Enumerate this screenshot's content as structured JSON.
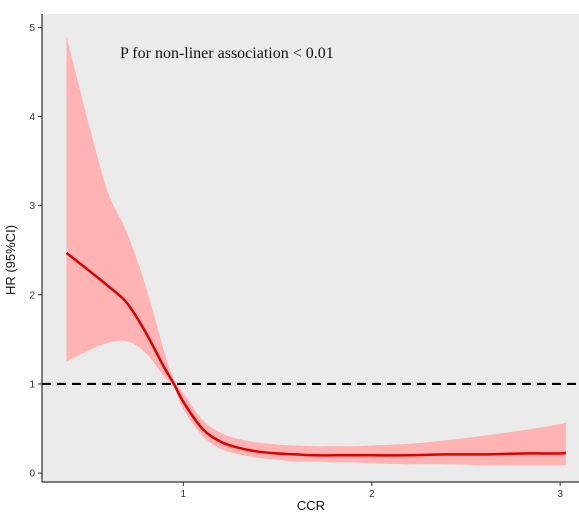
{
  "chart_data": {
    "type": "line",
    "title": "",
    "annotation": "P for non-liner association < 0.01",
    "xlabel": "CCR",
    "ylabel": "HR (95%CI)",
    "xlim": [
      0.25,
      3.1
    ],
    "ylim": [
      -0.1,
      5.15
    ],
    "x_ticks": [
      1,
      2,
      3
    ],
    "y_ticks": [
      0,
      1,
      2,
      3,
      4,
      5
    ],
    "grid": false,
    "reference_line": {
      "y": 1,
      "style": "dashed",
      "color": "#000000"
    },
    "colors": {
      "line": "#dd0000",
      "band": "#ffb3b3",
      "panel": "#ebebeb"
    },
    "series": [
      {
        "x": [
          0.38,
          0.5,
          0.6,
          0.7,
          0.8,
          0.9,
          0.95,
          1.0,
          1.1,
          1.2,
          1.3,
          1.4,
          1.5,
          1.6,
          1.7,
          1.8,
          1.9,
          2.0,
          2.2,
          2.4,
          2.6,
          2.8,
          3.0,
          3.03
        ],
        "y": [
          2.47,
          2.27,
          2.1,
          1.91,
          1.58,
          1.18,
          1.0,
          0.8,
          0.5,
          0.35,
          0.28,
          0.24,
          0.22,
          0.21,
          0.2,
          0.2,
          0.2,
          0.2,
          0.2,
          0.21,
          0.21,
          0.22,
          0.22,
          0.23
        ],
        "lower": [
          1.25,
          1.38,
          1.46,
          1.48,
          1.35,
          1.08,
          0.97,
          0.72,
          0.42,
          0.27,
          0.21,
          0.17,
          0.15,
          0.13,
          0.13,
          0.12,
          0.12,
          0.11,
          0.1,
          0.1,
          0.09,
          0.09,
          0.09,
          0.09
        ],
        "upper": [
          4.9,
          3.9,
          3.15,
          2.7,
          2.1,
          1.35,
          1.05,
          0.9,
          0.6,
          0.45,
          0.38,
          0.34,
          0.32,
          0.31,
          0.3,
          0.3,
          0.3,
          0.31,
          0.33,
          0.37,
          0.42,
          0.48,
          0.55,
          0.58
        ]
      }
    ]
  }
}
